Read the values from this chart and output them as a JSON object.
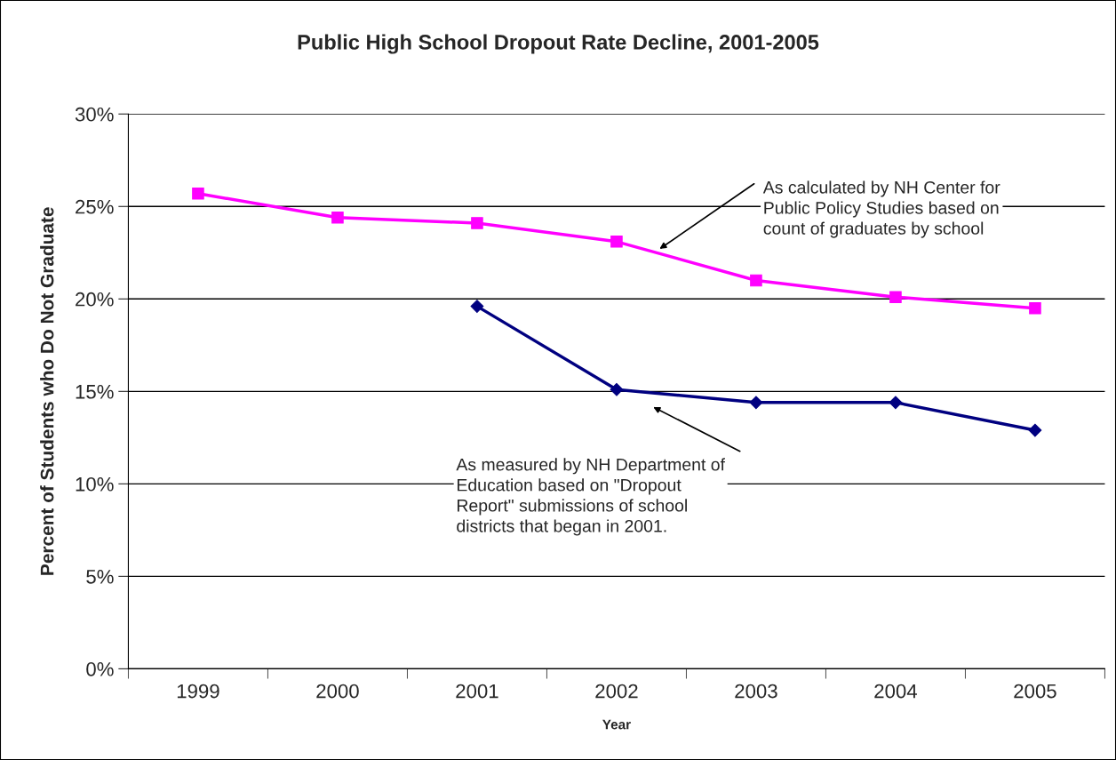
{
  "chart_data": {
    "type": "line",
    "title": "Public High School Dropout Rate Decline, 2001-2005",
    "xlabel": "Year",
    "ylabel": "Percent of Students who Do Not Graduate",
    "categories": [
      "1999",
      "2000",
      "2001",
      "2002",
      "2003",
      "2004",
      "2005"
    ],
    "series": [
      {
        "color": "#ff00ff",
        "marker": "square",
        "values": [
          25.7,
          24.4,
          24.1,
          23.1,
          21.0,
          20.1,
          19.5
        ]
      },
      {
        "color": "#000080",
        "marker": "diamond",
        "values": [
          null,
          null,
          19.6,
          15.1,
          14.4,
          14.4,
          12.9
        ]
      }
    ],
    "annotations": [
      "As calculated by NH Center for\nPublic Policy Studies based on\ncount of graduates by school",
      "As measured by NH Department of\nEducation based on \"Dropout\nReport\" submissions of school\ndistricts that began in 2001."
    ],
    "ylim": [
      0,
      30
    ],
    "yticks": [
      {
        "value": 0,
        "label": "0%"
      },
      {
        "value": 5,
        "label": "5%"
      },
      {
        "value": 10,
        "label": "10%"
      },
      {
        "value": 15,
        "label": "15%"
      },
      {
        "value": 20,
        "label": "20%"
      },
      {
        "value": 25,
        "label": "25%"
      },
      {
        "value": 30,
        "label": "30%"
      }
    ],
    "grid": "y",
    "legend": false,
    "line_style": "solid"
  }
}
